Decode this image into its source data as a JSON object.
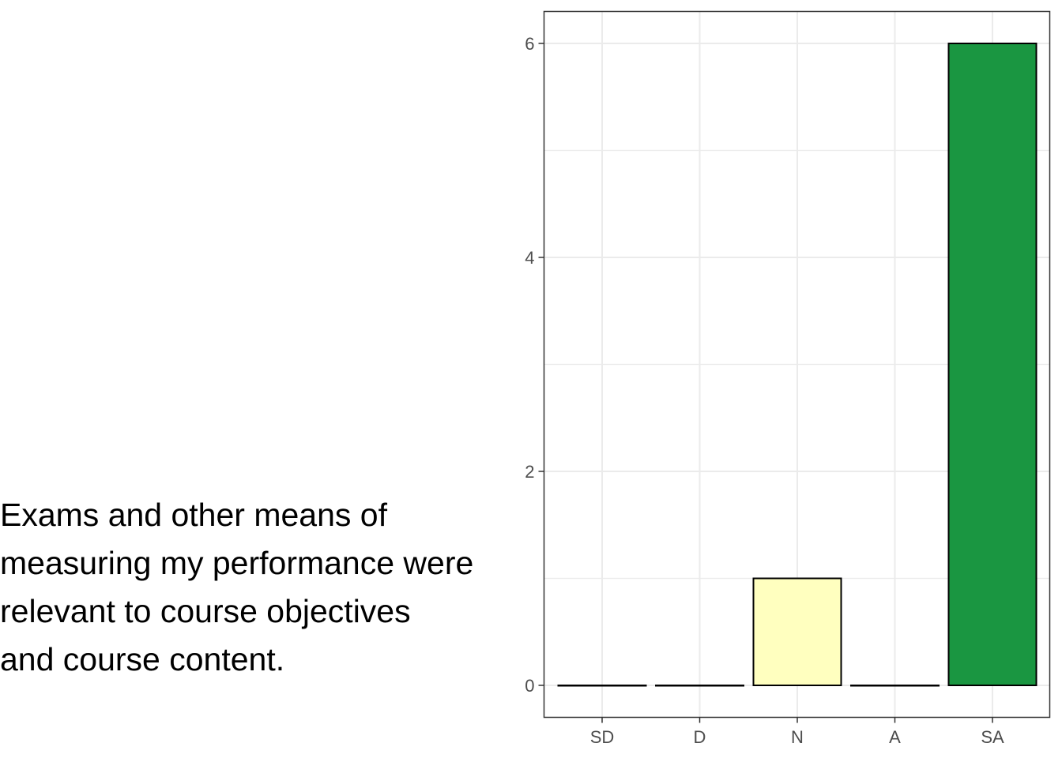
{
  "question": {
    "lines": [
      "Exams and other means of",
      "measuring my performance were",
      "relevant to course objectives",
      "and course content."
    ]
  },
  "chart_data": {
    "type": "bar",
    "categories": [
      "SD",
      "D",
      "N",
      "A",
      "SA"
    ],
    "values": [
      0,
      0,
      1,
      0,
      6
    ],
    "colors": [
      "#d7191c",
      "#fdae61",
      "#ffffbf",
      "#a6d96a",
      "#1a9641"
    ],
    "title": "",
    "xlabel": "",
    "ylabel": "",
    "ylim": [
      0,
      6
    ],
    "yticks": [
      0,
      2,
      4,
      6
    ],
    "grid": true,
    "legend": "none"
  },
  "theme": {
    "grid_color": "#ebebeb",
    "bar_outline": "#000000",
    "panel_border": "#333333",
    "tick_text": "#4d4d4d"
  }
}
